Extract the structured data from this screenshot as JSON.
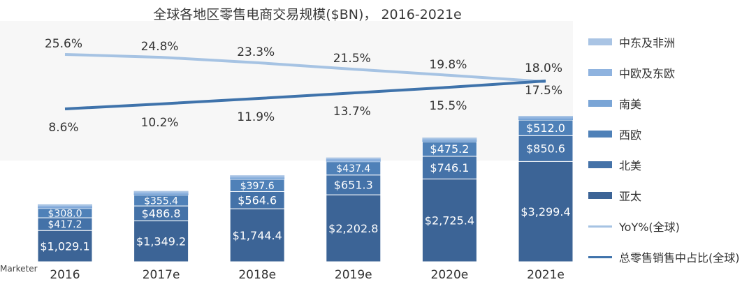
{
  "chart_data": {
    "type": "bar",
    "title": "全球各地区零售电商交易规模($BN)，  2016-2021e",
    "source": "Marketer",
    "categories": [
      "2016",
      "2017e",
      "2018e",
      "2019e",
      "2020e",
      "2021e"
    ],
    "series": [
      {
        "name": "中东及非洲",
        "color": "#a9c4e4",
        "values": [
          null,
          null,
          null,
          null,
          null,
          null
        ]
      },
      {
        "name": "中欧及东欧",
        "color": "#8fb3df",
        "values": [
          null,
          null,
          null,
          null,
          null,
          null
        ]
      },
      {
        "name": "南美",
        "color": "#7aa5d6",
        "values": [
          null,
          null,
          null,
          null,
          null,
          null
        ]
      },
      {
        "name": "西欧",
        "color": "#4f81b8",
        "values": [
          308.0,
          355.4,
          397.6,
          437.4,
          475.2,
          512.0
        ]
      },
      {
        "name": "北美",
        "color": "#4472a8",
        "values": [
          417.2,
          486.8,
          564.6,
          651.3,
          746.1,
          850.6
        ]
      },
      {
        "name": "亚太",
        "color": "#3c6496",
        "values": [
          1029.1,
          1349.2,
          1744.4,
          2202.8,
          2725.4,
          3299.4
        ]
      }
    ],
    "bar_labels": {
      "亚太": [
        "$1,029.1",
        "$1,349.2",
        "$1,744.4",
        "$2,202.8",
        "$2,725.4",
        "$3,299.4"
      ],
      "北美": [
        "$417.2",
        "$486.8",
        "$564.6",
        "$651.3",
        "$746.1",
        "$850.6"
      ],
      "西欧": [
        "$308.0",
        "$355.4",
        "$397.6",
        "$437.4",
        "$475.2",
        "$512.0"
      ]
    },
    "lines": [
      {
        "name": "YoY%(全球)",
        "color": "#a6c3e3",
        "values": [
          25.6,
          24.8,
          23.3,
          21.5,
          19.8,
          18.0
        ],
        "labels": [
          "25.6%",
          "24.8%",
          "23.3%",
          "21.5%",
          "19.8%",
          "18.0%"
        ]
      },
      {
        "name": "总零售销售中占比(全球)",
        "color": "#3f73ab",
        "values": [
          8.6,
          10.2,
          11.9,
          13.7,
          15.5,
          17.5
        ],
        "labels": [
          "8.6%",
          "10.2%",
          "11.9%",
          "13.7%",
          "15.5%",
          "17.5%"
        ]
      }
    ],
    "legend_position": "right",
    "grid": false
  }
}
